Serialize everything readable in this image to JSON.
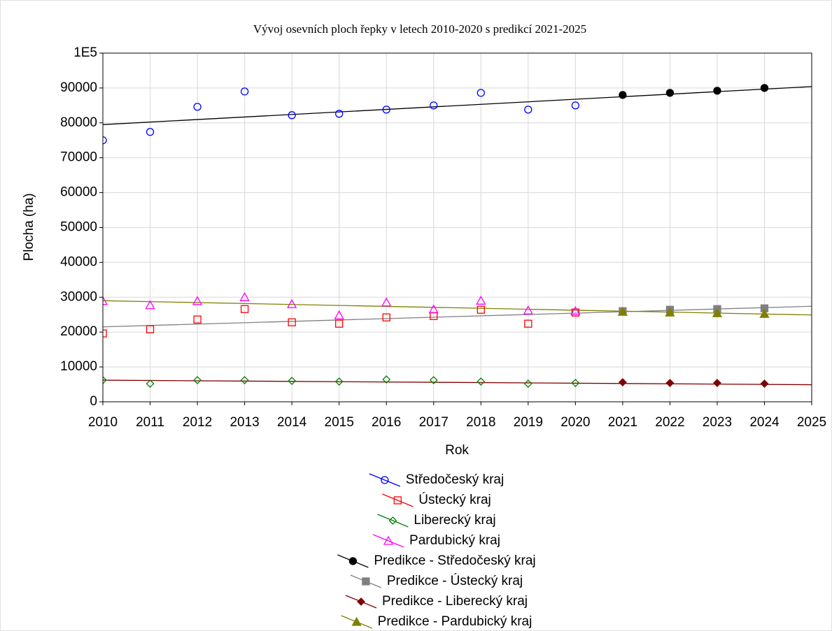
{
  "chart_data": {
    "type": "scatter",
    "title": "Vývoj osevních ploch řepky v letech 2010-2020 s predikcí 2021-2025",
    "x_label": "Rok",
    "y_label": "Plocha (ha)",
    "xlim": [
      2010,
      2025
    ],
    "xticks": [
      2010,
      2011,
      2012,
      2013,
      2014,
      2015,
      2016,
      2017,
      2018,
      2019,
      2020,
      2021,
      2022,
      2023,
      2024,
      2025
    ],
    "ylim": [
      0,
      100000
    ],
    "yticks": [
      0,
      10000,
      20000,
      30000,
      40000,
      50000,
      60000,
      70000,
      80000,
      90000,
      {
        "value": 100000,
        "label": "1E5"
      }
    ],
    "grid": true,
    "legend": "bottom",
    "series": [
      {
        "name": "Středočeský kraj",
        "color": "#0000ff",
        "marker": "circle",
        "filled": false,
        "x": [
          2010,
          2011,
          2012,
          2013,
          2014,
          2015,
          2016,
          2017,
          2018,
          2019,
          2020
        ],
        "values": [
          75000,
          77400,
          84600,
          89000,
          82200,
          82600,
          83800,
          85000,
          88600,
          83800,
          85000
        ]
      },
      {
        "name": "Ústecký kraj",
        "color": "#ff0000",
        "marker": "square",
        "filled": false,
        "x": [
          2010,
          2011,
          2012,
          2013,
          2014,
          2015,
          2016,
          2017,
          2018,
          2019,
          2020
        ],
        "values": [
          19600,
          20800,
          23600,
          26600,
          22800,
          22400,
          24200,
          24600,
          26400,
          22400,
          25600
        ]
      },
      {
        "name": "Liberecký kraj",
        "color": "#008000",
        "marker": "diamond",
        "filled": false,
        "x": [
          2010,
          2011,
          2012,
          2013,
          2014,
          2015,
          2016,
          2017,
          2018,
          2019,
          2020
        ],
        "values": [
          6200,
          5200,
          6200,
          6200,
          6000,
          5800,
          6400,
          6200,
          5800,
          5200,
          5400
        ]
      },
      {
        "name": "Pardubický kraj",
        "color": "#ff00ff",
        "marker": "triangle",
        "filled": false,
        "x": [
          2010,
          2011,
          2012,
          2013,
          2014,
          2015,
          2016,
          2017,
          2018,
          2019,
          2020
        ],
        "values": [
          28900,
          27700,
          28900,
          30000,
          28000,
          24800,
          28500,
          26500,
          29000,
          26200,
          26000
        ]
      },
      {
        "name": "Predikce - Středočeský kraj",
        "color": "#000000",
        "marker": "circle",
        "filled": true,
        "x": [
          2021,
          2022,
          2023,
          2024
        ],
        "values": [
          88000,
          88600,
          89200,
          90000
        ],
        "fit": {
          "x": [
            2010,
            2025
          ],
          "values": [
            79500,
            90400
          ]
        }
      },
      {
        "name": "Predikce - Ústecký kraj",
        "color": "#808080",
        "marker": "square",
        "filled": true,
        "x": [
          2021,
          2022,
          2023,
          2024
        ],
        "values": [
          26000,
          26400,
          26600,
          26800
        ],
        "fit": {
          "x": [
            2010,
            2025
          ],
          "values": [
            21500,
            27400
          ]
        }
      },
      {
        "name": "Predikce - Liberecký kraj",
        "color": "#800000",
        "marker": "diamond",
        "filled": true,
        "x": [
          2021,
          2022,
          2023,
          2024
        ],
        "values": [
          5600,
          5400,
          5400,
          5200
        ],
        "fit": {
          "x": [
            2010,
            2025
          ],
          "values": [
            6200,
            4900
          ]
        }
      },
      {
        "name": "Predikce - Pardubický kraj",
        "color": "#808000",
        "marker": "triangle",
        "filled": true,
        "x": [
          2021,
          2022,
          2023,
          2024
        ],
        "values": [
          25800,
          25600,
          25400,
          25200
        ],
        "fit": {
          "x": [
            2010,
            2025
          ],
          "values": [
            29000,
            24900
          ]
        }
      }
    ]
  }
}
